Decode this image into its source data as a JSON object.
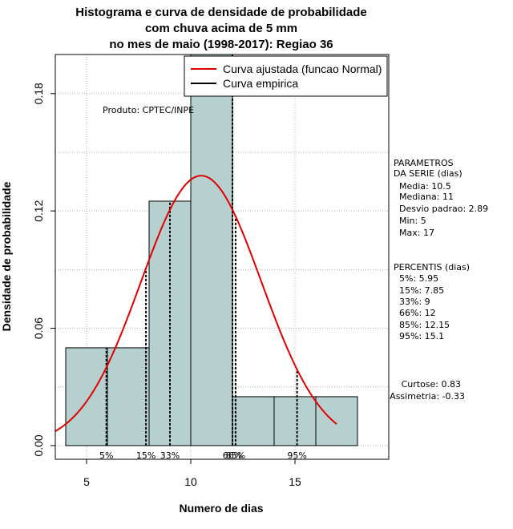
{
  "chart_data": {
    "type": "histogram",
    "title": [
      "Histograma e curva de densidade de probabilidade",
      "com chuva acima de 5 mm",
      "no mes de maio (1998-2017): Regiao 36"
    ],
    "xlabel": "Numero de dias",
    "ylabel": "Densidade de probabilidade",
    "xlim": [
      3.5,
      19.5
    ],
    "ylim": [
      -0.007,
      0.2
    ],
    "xticks": [
      5,
      10,
      15
    ],
    "xtick_labels": [
      "5",
      "10",
      "15"
    ],
    "yticks": [
      0.0,
      0.06,
      0.12,
      0.18
    ],
    "ytick_labels": [
      "0.00",
      "0.06",
      "0.12",
      "0.18"
    ],
    "bins": [
      {
        "x0": 4,
        "x1": 6,
        "density": 0.05
      },
      {
        "x0": 6,
        "x1": 8,
        "density": 0.05
      },
      {
        "x0": 8,
        "x1": 10,
        "density": 0.125
      },
      {
        "x0": 10,
        "x1": 12,
        "density": 0.2
      },
      {
        "x0": 12,
        "x1": 14,
        "density": 0.025
      },
      {
        "x0": 14,
        "x1": 16,
        "density": 0.025
      },
      {
        "x0": 16,
        "x1": 18,
        "density": 0.025
      }
    ],
    "normal_fit": {
      "mean": 10.5,
      "sd": 2.89,
      "x_range": [
        3.5,
        17
      ]
    },
    "percentile_lines": [
      {
        "label": "5%",
        "value": 5.95
      },
      {
        "label": "15%",
        "value": 7.85
      },
      {
        "label": "33%",
        "value": 9
      },
      {
        "label": "66%",
        "value": 12
      },
      {
        "label": "85%",
        "value": 12.15
      },
      {
        "label": "95%",
        "value": 15.1
      }
    ],
    "legend": [
      {
        "label": "Curva ajustada (funcao Normal)",
        "color": "#e00000"
      },
      {
        "label": "Curva empirica",
        "color": "#000000"
      }
    ],
    "product_note": "Produto: CPTEC/INPE",
    "grid": true
  },
  "stats": {
    "params_title": [
      "PARAMETROS",
      "DA SERIE (dias)"
    ],
    "params": [
      "Media: 10.5",
      "Mediana: 11",
      "Desvio padrao: 2.89",
      "Min: 5",
      "Max: 17"
    ],
    "percentis_title": "PERCENTIS (dias)",
    "percentis": [
      "5%: 5.95",
      "15%: 7.85",
      "33%: 9",
      "66%: 12",
      "85%: 12.15",
      "95%: 15.1"
    ],
    "shape": [
      "Curtose: 0.83",
      "Assimetria: -0.33"
    ]
  },
  "colors": {
    "bar_fill": "#b6cfcf",
    "curve": "#e00000",
    "grid": "#b0b0b0"
  }
}
